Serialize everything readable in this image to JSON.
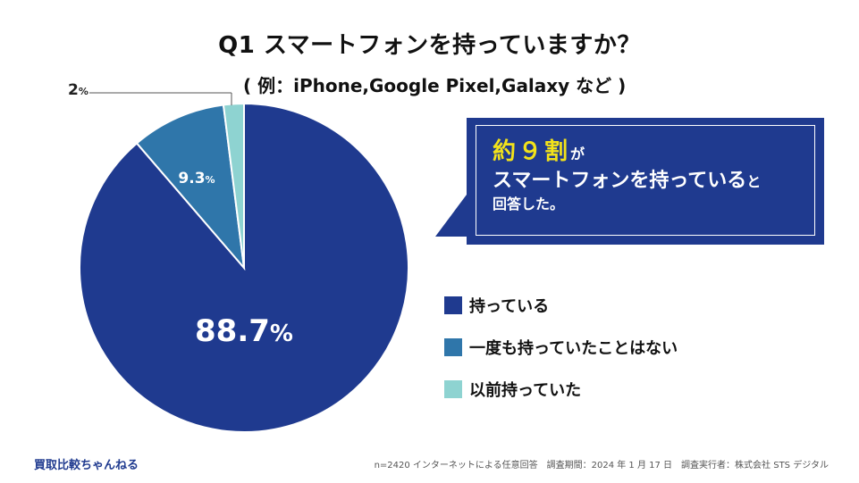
{
  "title": "Q1 スマートフォンを持っていますか？",
  "subtitle": "( 例：iPhone,Google Pixel,Galaxy など )",
  "chart_data": {
    "type": "pie",
    "categories": [
      "持っている",
      "一度も持っていたことはない",
      "以前持っていた"
    ],
    "values": [
      88.7,
      9.3,
      2
    ],
    "colors": [
      "#1f3a8f",
      "#2f76aa",
      "#8ed3d1"
    ],
    "labels": [
      "88.7",
      "9.3",
      "2"
    ],
    "unit": "%",
    "legend_position": "right"
  },
  "callout": {
    "highlight": "約９割",
    "line1_suffix": "が",
    "line2": "スマートフォンを持っている",
    "line2_suffix": "と",
    "line3": "回答した。"
  },
  "footer": {
    "brand": "買取比較ちゃんねる",
    "note": "n=2420 インターネットによる任意回答　調査期間：2024 年 1 月 17 日　調査実行者：株式会社 STS デジタル"
  }
}
